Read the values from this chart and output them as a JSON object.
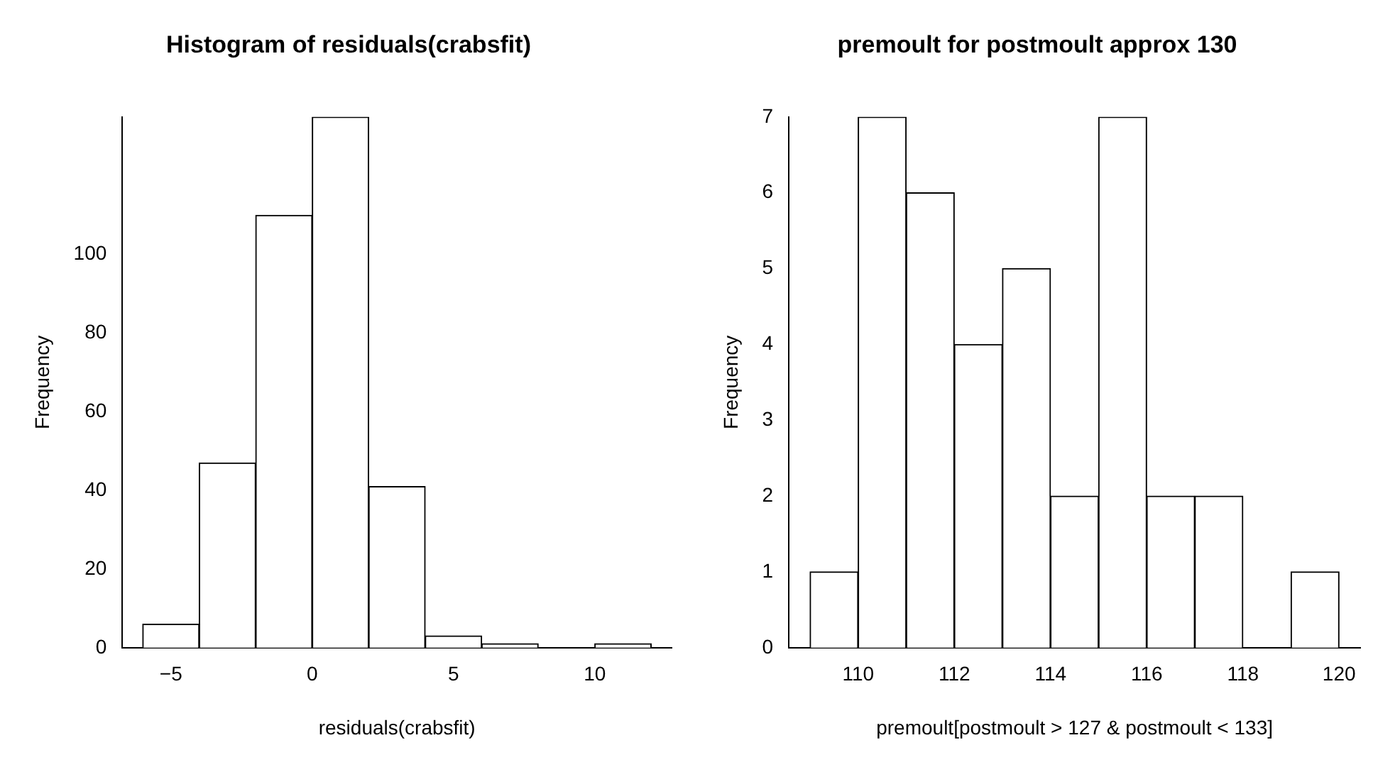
{
  "chart_data": [
    {
      "type": "histogram",
      "title": "Histogram of residuals(crabsfit)",
      "xlabel": "residuals(crabsfit)",
      "ylabel": "Frequency",
      "bins": [
        -6,
        -4,
        -2,
        0,
        2,
        4,
        6,
        8,
        10,
        12
      ],
      "values": [
        6,
        47,
        110,
        135,
        41,
        3,
        1,
        0,
        1
      ],
      "color": "#ffffff",
      "xlim": [
        -6.72,
        12.72
      ],
      "xticks": [
        -5,
        0,
        5,
        10
      ],
      "ylim": [
        0,
        135
      ],
      "yticks": [
        0,
        20,
        40,
        60,
        80,
        100
      ],
      "grid": false,
      "legend": false
    },
    {
      "type": "histogram",
      "title": "premoult for postmoult approx 130",
      "xlabel": "premoult[postmoult > 127 & postmoult < 133]",
      "ylabel": "Frequency",
      "bins": [
        109,
        110,
        111,
        112,
        113,
        114,
        115,
        116,
        117,
        118,
        119,
        120
      ],
      "values": [
        1,
        7,
        6,
        4,
        5,
        2,
        7,
        2,
        2,
        0,
        1
      ],
      "color": "#ffffff",
      "xlim": [
        108.56,
        120.44
      ],
      "xticks": [
        110,
        112,
        114,
        116,
        118,
        120
      ],
      "ylim": [
        0,
        7
      ],
      "yticks": [
        0,
        1,
        2,
        3,
        4,
        5,
        6,
        7
      ],
      "grid": false,
      "legend": false
    }
  ]
}
